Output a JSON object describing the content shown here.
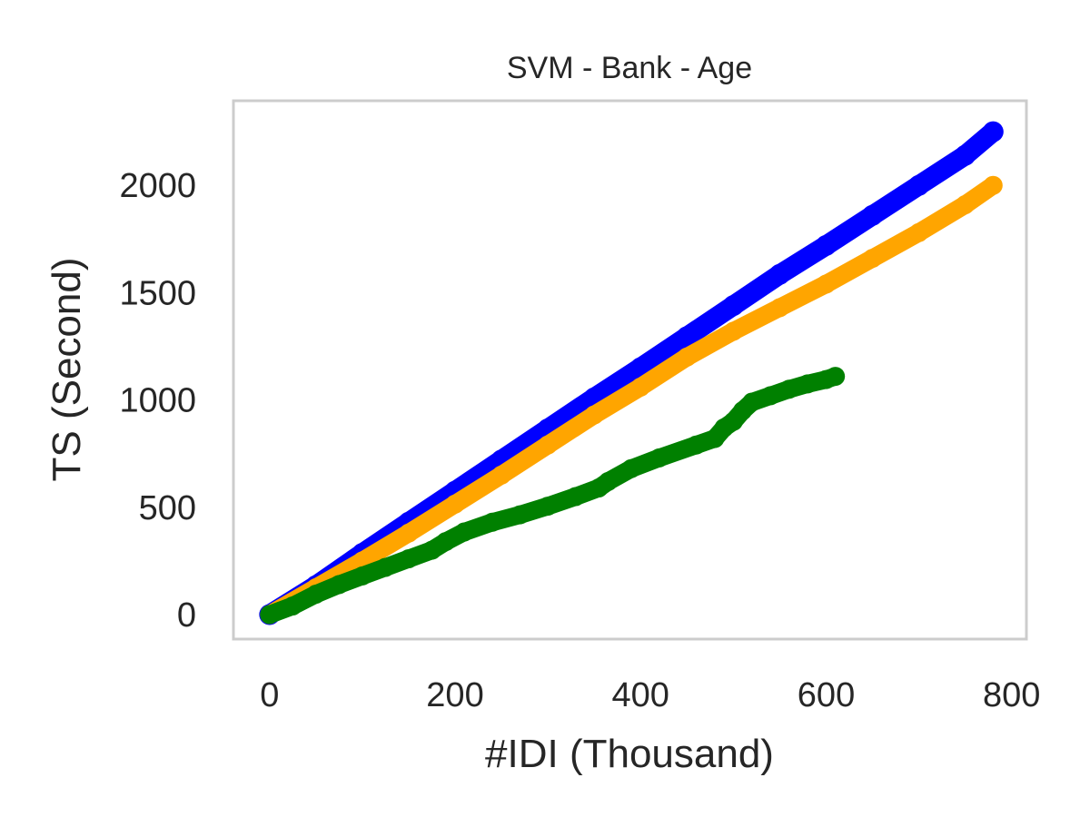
{
  "chart_data": {
    "type": "scatter",
    "title": "SVM - Bank - Age",
    "xlabel": "#IDI (Thousand)",
    "ylabel": "TS (Second)",
    "xlim": [
      -38,
      815
    ],
    "ylim": [
      -110,
      2390
    ],
    "x_ticks": [
      "0",
      "200",
      "400",
      "600",
      "800"
    ],
    "y_ticks": [
      "0",
      "500",
      "1000",
      "1500",
      "2000"
    ],
    "grid": false,
    "legend": "none",
    "series": [
      {
        "color": "#0000ff",
        "x": [
          0,
          50,
          100,
          150,
          200,
          250,
          300,
          350,
          400,
          450,
          500,
          550,
          600,
          650,
          700,
          750,
          780
        ],
        "y": [
          0,
          135,
          285,
          430,
          575,
          720,
          865,
          1010,
          1150,
          1295,
          1440,
          1585,
          1720,
          1860,
          2000,
          2140,
          2250
        ]
      },
      {
        "color": "#ffa500",
        "x": [
          0,
          50,
          100,
          150,
          200,
          250,
          300,
          350,
          400,
          450,
          500,
          550,
          600,
          650,
          700,
          750,
          780
        ],
        "y": [
          0,
          125,
          250,
          380,
          515,
          650,
          790,
          930,
          1060,
          1200,
          1320,
          1430,
          1540,
          1660,
          1780,
          1910,
          2000
        ]
      },
      {
        "color": "#008000",
        "x": [
          0,
          25,
          50,
          75,
          100,
          125,
          150,
          175,
          190,
          210,
          240,
          270,
          300,
          330,
          355,
          365,
          390,
          420,
          460,
          480,
          490,
          500,
          510,
          520,
          540,
          560,
          580,
          600,
          610
        ],
        "y": [
          0,
          40,
          95,
          140,
          180,
          220,
          260,
          300,
          340,
          385,
          430,
          465,
          505,
          550,
          590,
          620,
          680,
          730,
          790,
          820,
          870,
          900,
          950,
          990,
          1020,
          1050,
          1075,
          1095,
          1110
        ]
      }
    ]
  }
}
